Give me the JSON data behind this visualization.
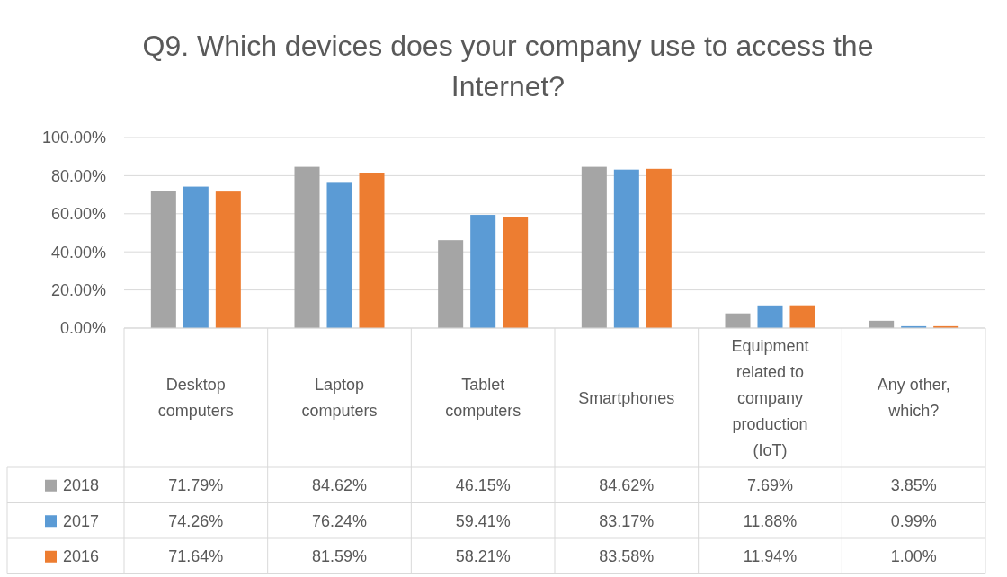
{
  "chart_data": {
    "type": "bar",
    "title": "Q9. Which devices does your company use to access the Internet?",
    "categories": [
      "Desktop computers",
      "Laptop computers",
      "Tablet computers",
      "Smartphones",
      "Equipment related to company production (IoT)",
      "Any other, which?"
    ],
    "series": [
      {
        "name": "2018",
        "color": "#a5a5a5",
        "values": [
          71.79,
          84.62,
          46.15,
          84.62,
          7.69,
          3.85
        ],
        "value_labels": [
          "71.79%",
          "84.62%",
          "46.15%",
          "84.62%",
          "7.69%",
          "3.85%"
        ]
      },
      {
        "name": "2017",
        "color": "#5b9bd5",
        "values": [
          74.26,
          76.24,
          59.41,
          83.17,
          11.88,
          0.99
        ],
        "value_labels": [
          "74.26%",
          "76.24%",
          "59.41%",
          "83.17%",
          "11.88%",
          "0.99%"
        ]
      },
      {
        "name": "2016",
        "color": "#ed7d31",
        "values": [
          71.64,
          81.59,
          58.21,
          83.58,
          11.94,
          1.0
        ],
        "value_labels": [
          "71.64%",
          "81.59%",
          "58.21%",
          "83.58%",
          "11.94%",
          "1.00%"
        ]
      }
    ],
    "ylim": [
      0,
      100
    ],
    "yticks": [
      {
        "value": 0,
        "label": "0.00%"
      },
      {
        "value": 20,
        "label": "20.00%"
      },
      {
        "value": 40,
        "label": "40.00%"
      },
      {
        "value": 60,
        "label": "60.00%"
      },
      {
        "value": 80,
        "label": "80.00%"
      },
      {
        "value": 100,
        "label": "100.00%"
      }
    ],
    "grid": "y",
    "legend": "bottom"
  }
}
